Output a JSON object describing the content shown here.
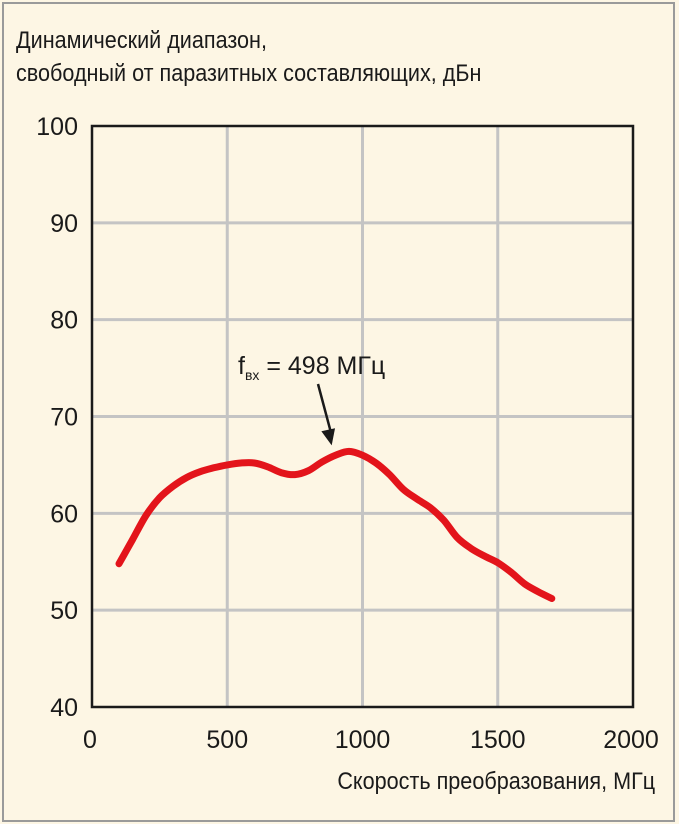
{
  "chart_data": {
    "type": "line",
    "title": "",
    "ylabel_lines": [
      "Динамический диапазон,",
      "свободный от паразитных составляющих, дБн"
    ],
    "xlabel": "Скорость преобразования, МГц",
    "xlim": [
      0,
      2000
    ],
    "ylim": [
      40,
      100
    ],
    "xticks": [
      0,
      500,
      1000,
      1500,
      2000
    ],
    "yticks": [
      40,
      50,
      60,
      70,
      80,
      90,
      100
    ],
    "grid": true,
    "colors": {
      "line": "#e3141b",
      "grid": "#c4c4c4",
      "axis": "#1a1a1a",
      "background": "#fdf6e4"
    },
    "series": [
      {
        "x": [
          100,
          150,
          200,
          250,
          300,
          350,
          400,
          450,
          500,
          550,
          600,
          650,
          700,
          750,
          800,
          850,
          900,
          950,
          1000,
          1050,
          1100,
          1150,
          1200,
          1250,
          1300,
          1350,
          1400,
          1450,
          1500,
          1550,
          1600,
          1650,
          1700
        ],
        "y": [
          54.8,
          57.3,
          59.8,
          61.6,
          62.8,
          63.7,
          64.3,
          64.7,
          65.0,
          65.2,
          65.2,
          64.8,
          64.2,
          64.0,
          64.4,
          65.3,
          66.0,
          66.4,
          66.0,
          65.2,
          64.0,
          62.5,
          61.5,
          60.6,
          59.3,
          57.5,
          56.4,
          55.6,
          54.9,
          53.9,
          52.7,
          51.9,
          51.2
        ]
      }
    ],
    "annotation": {
      "text_main": "f",
      "text_sub": "вх",
      "text_rest": " = 498 МГц",
      "point": [
        960,
        66.4
      ]
    }
  }
}
